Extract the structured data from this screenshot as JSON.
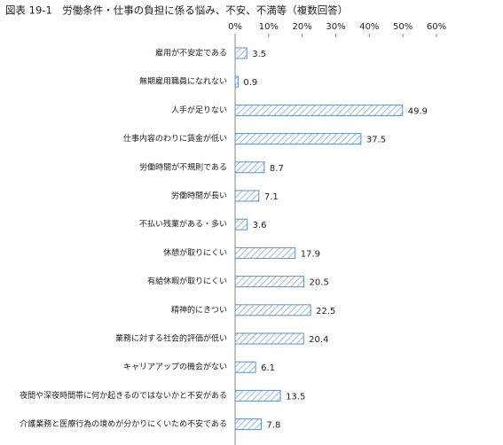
{
  "chart_data": {
    "type": "bar",
    "orientation": "horizontal",
    "title": "図表 19-1　労働条件・仕事の負担に係る悩み、不安、不満等（複数回答）",
    "categories": [
      "雇用が不安定である",
      "無期雇用職員になれない",
      "人手が足りない",
      "仕事内容のわりに賃金が低い",
      "労働時間が不規則である",
      "労働時間が長い",
      "不払い残業がある・多い",
      "休憩が取りにくい",
      "有給休暇が取りにくい",
      "精神的にきつい",
      "業務に対する社会的評価が低い",
      "キャリアアップの機会がない",
      "夜間や深夜時間帯に何か起きるのではないかと不安がある",
      "介護業務と医療行為の境めが分かりにくいため不安である"
    ],
    "values": [
      3.5,
      0.9,
      49.9,
      37.5,
      8.7,
      7.1,
      3.6,
      17.9,
      20.5,
      22.5,
      20.4,
      6.1,
      13.5,
      7.8
    ],
    "color": "#5b8fc9",
    "xlim": [
      0,
      60
    ],
    "xticks": [
      {
        "value": 0,
        "label": "0%"
      },
      {
        "value": 10,
        "label": "10%"
      },
      {
        "value": 20,
        "label": "20%"
      },
      {
        "value": 30,
        "label": "30%"
      },
      {
        "value": 40,
        "label": "40%"
      },
      {
        "value": 50,
        "label": "50%"
      },
      {
        "value": 60,
        "label": "60%"
      }
    ]
  }
}
